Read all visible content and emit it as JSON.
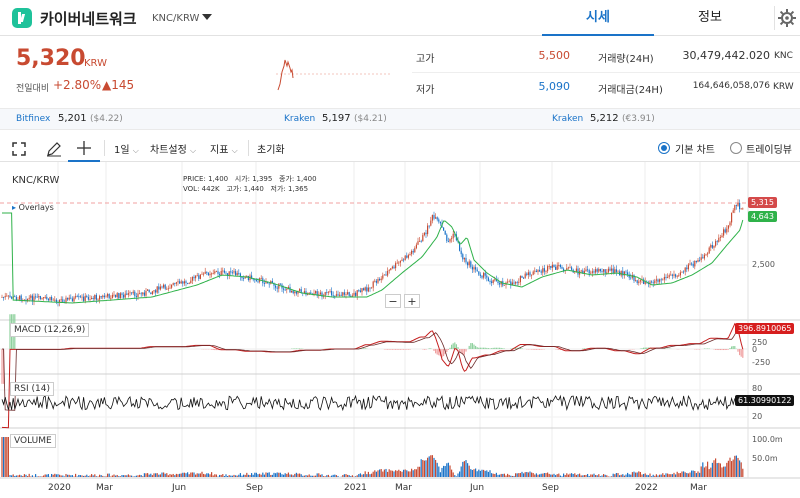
{
  "header": {
    "coin_name": "카이버네트워크",
    "pair": "KNC/KRW",
    "tabs": [
      {
        "label": "시세"
      },
      {
        "label": "정보"
      }
    ]
  },
  "price": {
    "value": "5,320",
    "unit": "KRW",
    "change_label": "전일대비",
    "change_pct": "+2.80%",
    "change_amt": "▲145"
  },
  "stats": {
    "high_label": "고가",
    "high": "5,500",
    "low_label": "저가",
    "low": "5,090",
    "vol_label": "거래량(24H)",
    "vol": "30,479,442.020",
    "vol_unit": "KNC",
    "amt_label": "거래대금(24H)",
    "amt": "164,646,058,076",
    "amt_unit": "KRW"
  },
  "exchanges": [
    {
      "name": "Bitfinex",
      "price": "5,201",
      "ref": "($4.22)"
    },
    {
      "name": "Kraken",
      "price": "5,197",
      "ref": "($4.21)"
    },
    {
      "name": "Kraken",
      "price": "5,212",
      "ref": "(€3.91)"
    }
  ],
  "toolbar": {
    "interval": "1일",
    "chart_settings": "차트설정",
    "indicators": "지표",
    "reset": "초기화",
    "basic_chart": "기본 차트",
    "tradingview": "트레이딩뷰"
  },
  "chart": {
    "symbol": "KNC/KRW",
    "overlays": "Overlays",
    "ohlc": {
      "price_label": "PRICE:",
      "price": "1,400",
      "open_label": "시가:",
      "open": "1,395",
      "close_label": "종가:",
      "close": "1,400",
      "vol_label": "VOL:",
      "vol": "442K",
      "high_label": "고가:",
      "high": "1,440",
      "low_label": "저가:",
      "low": "1,365"
    },
    "last_price_tag": "5,315",
    "ma_tag": "4,643",
    "price_axis": [
      "2,500"
    ],
    "macd_label": "MACD (12,26,9)",
    "macd_tag": "396.8910065",
    "macd_axis": [
      "250",
      "0",
      "-250"
    ],
    "rsi_label": "RSI (14)",
    "rsi_tag": "61.30990122",
    "rsi_axis": [
      "80",
      "20"
    ],
    "volume_label": "VOLUME",
    "volume_axis": [
      "100.0m",
      "50.0m"
    ],
    "x_labels": [
      "2020",
      "Mar",
      "Jun",
      "Sep",
      "2021",
      "Mar",
      "Jun",
      "Sep",
      "2022",
      "Mar"
    ],
    "colors": {
      "up": "#c84a31",
      "down": "#1a73c8",
      "ma": "#2fb24a",
      "macd": "#c41e1e",
      "signal": "#8b2a2a"
    }
  }
}
